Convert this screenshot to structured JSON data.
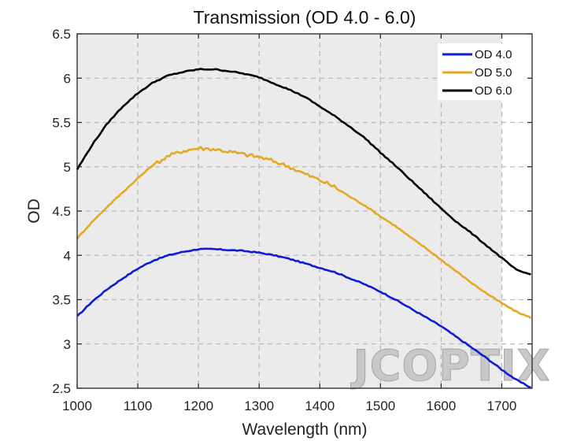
{
  "chart_data": {
    "type": "line",
    "title": "Transmission (OD 4.0 - 6.0)",
    "xlabel": "Wavelength (nm)",
    "ylabel": "OD",
    "xlim": [
      1000,
      1750
    ],
    "ylim": [
      2.5,
      6.5
    ],
    "xticks": [
      1000,
      1100,
      1200,
      1300,
      1400,
      1500,
      1600,
      1700
    ],
    "yticks": [
      2.5,
      3,
      3.5,
      4,
      4.5,
      5,
      5.5,
      6,
      6.5
    ],
    "xtick_labels": [
      "1000",
      "1100",
      "1200",
      "1300",
      "1400",
      "1500",
      "1600",
      "1700"
    ],
    "ytick_labels": [
      "2.5",
      "3",
      "3.5",
      "4",
      "4.5",
      "5",
      "5.5",
      "6",
      "6.5"
    ],
    "grid": true,
    "shaded_region": {
      "x": [
        1000,
        1700
      ],
      "color": "#ebebeb"
    },
    "legend_position": "top-right",
    "watermark": "JCOPTIX",
    "series": [
      {
        "name": "OD 4.0",
        "color": "#0f1bd6",
        "x": [
          1000,
          1025,
          1050,
          1075,
          1100,
          1125,
          1150,
          1175,
          1200,
          1225,
          1250,
          1275,
          1300,
          1325,
          1350,
          1375,
          1400,
          1425,
          1450,
          1475,
          1500,
          1525,
          1550,
          1575,
          1600,
          1625,
          1650,
          1675,
          1700,
          1725,
          1750
        ],
        "y": [
          3.31,
          3.48,
          3.62,
          3.74,
          3.85,
          3.94,
          4.0,
          4.04,
          4.07,
          4.07,
          4.06,
          4.05,
          4.03,
          4.0,
          3.96,
          3.91,
          3.86,
          3.81,
          3.74,
          3.67,
          3.59,
          3.5,
          3.4,
          3.3,
          3.2,
          3.08,
          2.96,
          2.84,
          2.71,
          2.59,
          2.5
        ]
      },
      {
        "name": "OD 5.0",
        "color": "#e5a820",
        "x": [
          1000,
          1025,
          1050,
          1075,
          1100,
          1125,
          1150,
          1175,
          1200,
          1225,
          1250,
          1275,
          1300,
          1325,
          1350,
          1375,
          1400,
          1425,
          1450,
          1475,
          1500,
          1525,
          1550,
          1575,
          1600,
          1625,
          1650,
          1675,
          1700,
          1725,
          1750
        ],
        "y": [
          4.19,
          4.38,
          4.55,
          4.71,
          4.87,
          5.02,
          5.12,
          5.18,
          5.21,
          5.2,
          5.17,
          5.14,
          5.11,
          5.06,
          5.0,
          4.92,
          4.85,
          4.77,
          4.66,
          4.56,
          4.44,
          4.33,
          4.2,
          4.08,
          3.95,
          3.82,
          3.69,
          3.57,
          3.46,
          3.36,
          3.29
        ]
      },
      {
        "name": "OD 6.0",
        "color": "#000000",
        "x": [
          1000,
          1025,
          1050,
          1075,
          1100,
          1125,
          1150,
          1175,
          1200,
          1225,
          1250,
          1275,
          1300,
          1325,
          1350,
          1375,
          1400,
          1425,
          1450,
          1475,
          1500,
          1525,
          1550,
          1575,
          1600,
          1625,
          1650,
          1675,
          1700,
          1725,
          1750
        ],
        "y": [
          4.97,
          5.25,
          5.49,
          5.68,
          5.83,
          5.95,
          6.03,
          6.07,
          6.1,
          6.1,
          6.08,
          6.05,
          6.01,
          5.94,
          5.87,
          5.79,
          5.68,
          5.57,
          5.45,
          5.32,
          5.16,
          5.01,
          4.85,
          4.69,
          4.53,
          4.38,
          4.25,
          4.11,
          3.97,
          3.83,
          3.78
        ]
      }
    ]
  }
}
